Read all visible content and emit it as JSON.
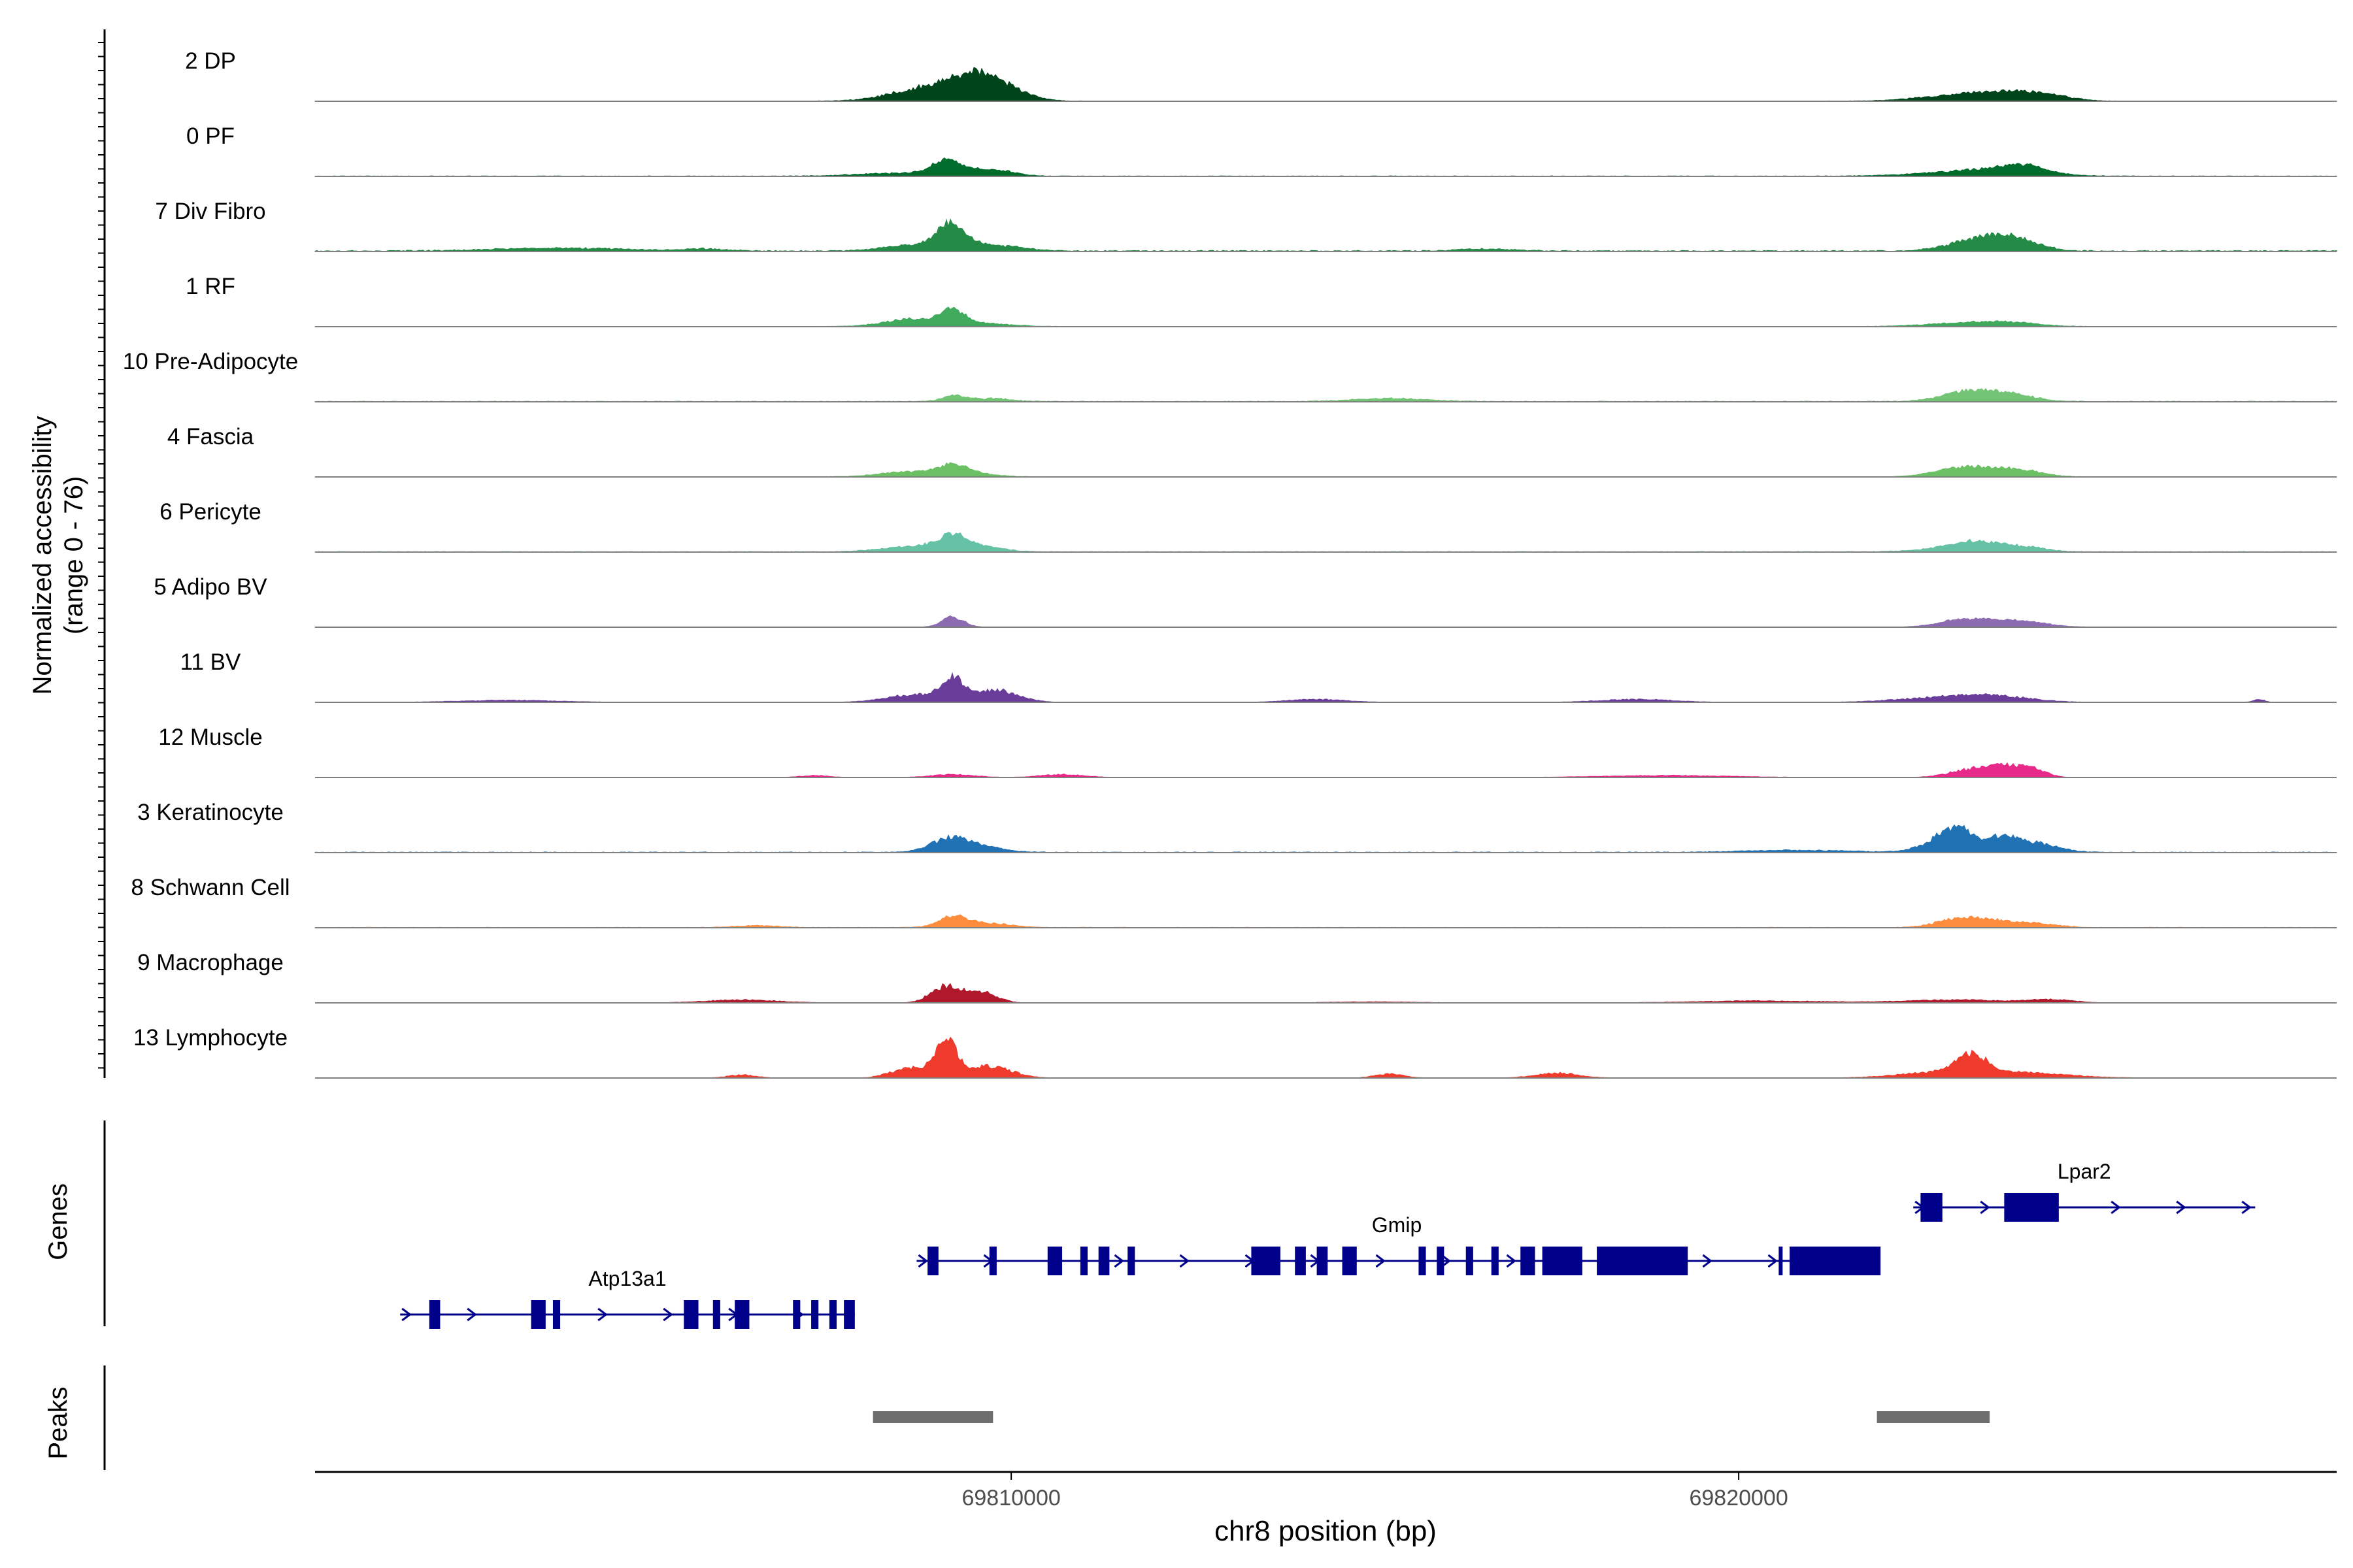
{
  "chart_data": {
    "type": "area",
    "title": "",
    "xlabel": "chr8 position (bp)",
    "ylabel": "Normalized accessibility",
    "ylabel_sub": "(range 0 - 76)",
    "y_range": [
      0,
      76
    ],
    "x_range": [
      69800430,
      69828220
    ],
    "x_ticks": [
      {
        "value": 69810000,
        "label": "69810000"
      },
      {
        "value": 69820000,
        "label": "69820000"
      }
    ],
    "tracks": [
      {
        "name": "2 DP",
        "color": "#00441b",
        "baseline": 0.3,
        "peaks": [
          [
            69808900,
            500,
            14
          ],
          [
            69809450,
            300,
            13
          ],
          [
            69809800,
            350,
            15
          ],
          [
            69822900,
            500,
            5
          ],
          [
            69823600,
            400,
            7
          ],
          [
            69824200,
            350,
            6
          ]
        ]
      },
      {
        "name": "0 PF",
        "color": "#006d2c",
        "baseline": 0.5,
        "peaks": [
          [
            69808500,
            600,
            3
          ],
          [
            69809100,
            200,
            14
          ],
          [
            69809700,
            300,
            7
          ],
          [
            69823300,
            700,
            6
          ],
          [
            69823900,
            300,
            8
          ]
        ]
      },
      {
        "name": "7 Div Fibro",
        "color": "#238b45",
        "baseline": 1.0,
        "peaks": [
          [
            69803800,
            900,
            3
          ],
          [
            69805800,
            300,
            2
          ],
          [
            69808600,
            400,
            5
          ],
          [
            69809150,
            200,
            24
          ],
          [
            69809700,
            400,
            6
          ],
          [
            69823000,
            300,
            6
          ],
          [
            69823500,
            300,
            12
          ],
          [
            69823900,
            300,
            8
          ],
          [
            69816500,
            400,
            2
          ]
        ]
      },
      {
        "name": "1 RF",
        "color": "#41ab5d",
        "baseline": 0.3,
        "peaks": [
          [
            69808700,
            400,
            8
          ],
          [
            69809200,
            150,
            13
          ],
          [
            69809600,
            400,
            3
          ],
          [
            69823000,
            500,
            3
          ],
          [
            69823700,
            400,
            4
          ]
        ]
      },
      {
        "name": "10 Pre-Adipocyte",
        "color": "#74c476",
        "baseline": 0.6,
        "peaks": [
          [
            69809200,
            150,
            6
          ],
          [
            69809700,
            300,
            3
          ],
          [
            69815200,
            500,
            3
          ],
          [
            69822900,
            300,
            4
          ],
          [
            69823300,
            300,
            9
          ],
          [
            69823800,
            300,
            6
          ]
        ]
      },
      {
        "name": "4 Fascia",
        "color": "#6cc064",
        "baseline": 0.3,
        "peaks": [
          [
            69808600,
            400,
            5
          ],
          [
            69809200,
            200,
            10
          ],
          [
            69809500,
            300,
            3
          ],
          [
            69822900,
            300,
            4
          ],
          [
            69823300,
            400,
            8
          ],
          [
            69823900,
            300,
            5
          ]
        ]
      },
      {
        "name": "6 Pericyte",
        "color": "#66c2a4",
        "baseline": 0.5,
        "peaks": [
          [
            69808800,
            500,
            6
          ],
          [
            69809200,
            200,
            12
          ],
          [
            69809600,
            300,
            4
          ],
          [
            69822900,
            400,
            4
          ],
          [
            69823300,
            300,
            8
          ],
          [
            69823900,
            300,
            5
          ]
        ]
      },
      {
        "name": "5 Adipo BV",
        "color": "#8c6bb1",
        "baseline": 0.2,
        "peaks": [
          [
            69809200,
            150,
            10
          ],
          [
            69823000,
            300,
            4
          ],
          [
            69823400,
            400,
            6
          ],
          [
            69824000,
            300,
            4
          ]
        ]
      },
      {
        "name": "11 BV",
        "color": "#6a3d9a",
        "baseline": 0.0,
        "peaks": [
          [
            69803100,
            700,
            2
          ],
          [
            69808700,
            400,
            8
          ],
          [
            69809200,
            150,
            21
          ],
          [
            69809800,
            300,
            12
          ],
          [
            69814200,
            400,
            3
          ],
          [
            69818600,
            500,
            3
          ],
          [
            69822700,
            600,
            4
          ],
          [
            69823500,
            500,
            6
          ],
          [
            69827150,
            80,
            3
          ]
        ]
      },
      {
        "name": "12 Muscle",
        "color": "#e7298a",
        "baseline": 0.0,
        "peaks": [
          [
            69809200,
            300,
            3
          ],
          [
            69807300,
            200,
            2
          ],
          [
            69810700,
            300,
            3
          ],
          [
            69823200,
            300,
            8
          ],
          [
            69823600,
            200,
            9
          ],
          [
            69824000,
            200,
            10
          ],
          [
            69819000,
            900,
            2
          ]
        ]
      },
      {
        "name": "3 Keratinocyte",
        "color": "#2171b5",
        "baseline": 0.6,
        "peaks": [
          [
            69809150,
            250,
            14
          ],
          [
            69809600,
            300,
            5
          ],
          [
            69822800,
            300,
            10
          ],
          [
            69823000,
            200,
            18
          ],
          [
            69823600,
            250,
            14
          ],
          [
            69824100,
            300,
            8
          ],
          [
            69820800,
            700,
            2
          ]
        ]
      },
      {
        "name": "8 Schwann Cell",
        "color": "#fd8d3c",
        "baseline": 0.4,
        "peaks": [
          [
            69809200,
            200,
            11
          ],
          [
            69809700,
            300,
            4
          ],
          [
            69823000,
            300,
            8
          ],
          [
            69823500,
            300,
            6
          ],
          [
            69824100,
            300,
            4
          ],
          [
            69806500,
            300,
            2
          ]
        ]
      },
      {
        "name": "9 Macrophage",
        "color": "#b2182b",
        "baseline": 0.0,
        "peaks": [
          [
            69809100,
            200,
            17
          ],
          [
            69809600,
            200,
            11
          ],
          [
            69806300,
            500,
            3
          ],
          [
            69823000,
            700,
            3
          ],
          [
            69824300,
            300,
            3
          ],
          [
            69815000,
            600,
            1
          ],
          [
            69820300,
            900,
            2
          ]
        ]
      },
      {
        "name": "13 Lymphocyte",
        "color": "#ef3b2c",
        "baseline": 0.0,
        "peaks": [
          [
            69808600,
            250,
            10
          ],
          [
            69809100,
            150,
            38
          ],
          [
            69809700,
            300,
            12
          ],
          [
            69823200,
            200,
            18
          ],
          [
            69822800,
            600,
            5
          ],
          [
            69823800,
            700,
            5
          ],
          [
            69806300,
            200,
            3
          ],
          [
            69815200,
            200,
            4
          ],
          [
            69817500,
            300,
            5
          ]
        ]
      }
    ],
    "genes": [
      {
        "name": "Atp13a1",
        "strand": "+",
        "start": 69801600,
        "end": 69807850,
        "row": 3,
        "exons": [
          [
            69802000,
            69802150
          ],
          [
            69803400,
            69803600
          ],
          [
            69803700,
            69803800
          ],
          [
            69805500,
            69805700
          ],
          [
            69805900,
            69806000
          ],
          [
            69806200,
            69806400
          ],
          [
            69807000,
            69807100
          ],
          [
            69807250,
            69807350
          ],
          [
            69807500,
            69807600
          ],
          [
            69807700,
            69807850
          ]
        ]
      },
      {
        "name": "Gmip",
        "strand": "+",
        "start": 69808700,
        "end": 69821900,
        "row": 2,
        "exons": [
          [
            69808850,
            69809000
          ],
          [
            69809700,
            69809800
          ],
          [
            69810500,
            69810700
          ],
          [
            69810950,
            69811050
          ],
          [
            69811200,
            69811350
          ],
          [
            69811600,
            69811700
          ],
          [
            69813300,
            69813700
          ],
          [
            69813900,
            69814050
          ],
          [
            69814200,
            69814350
          ],
          [
            69814550,
            69814750
          ],
          [
            69815600,
            69815700
          ],
          [
            69815850,
            69815950
          ],
          [
            69816250,
            69816350
          ],
          [
            69816600,
            69816700
          ],
          [
            69817000,
            69817200
          ],
          [
            69817300,
            69817850
          ],
          [
            69818050,
            69819300
          ],
          [
            69820550,
            69820600
          ],
          [
            69820700,
            69821950
          ]
        ]
      },
      {
        "name": "Lpar2",
        "strand": "+",
        "start": 69822400,
        "end": 69827100,
        "row": 1,
        "exons": [
          [
            69822500,
            69822800
          ],
          [
            69823650,
            69824400
          ]
        ]
      }
    ],
    "peaks_track": [
      [
        69808100,
        69809750
      ],
      [
        69821900,
        69823450
      ]
    ],
    "panel_labels": {
      "genes": "Genes",
      "peaks": "Peaks"
    }
  }
}
